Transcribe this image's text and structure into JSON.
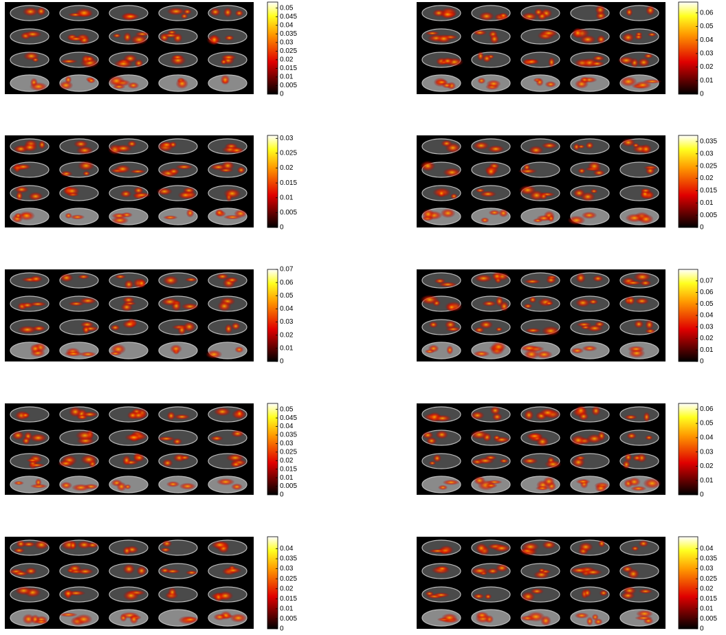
{
  "panels": [
    {
      "colorbar": {
        "lim": [
          0,
          0.0535
        ],
        "ticks": [
          0,
          0.005,
          0.01,
          0.015,
          0.02,
          0.025,
          0.03,
          0.035,
          0.04,
          0.045,
          0.05
        ]
      }
    },
    {
      "colorbar": {
        "lim": [
          0,
          0.068
        ],
        "ticks": [
          0,
          0.01,
          0.02,
          0.03,
          0.04,
          0.05,
          0.06
        ]
      }
    },
    {
      "colorbar": {
        "lim": [
          0,
          0.031
        ],
        "ticks": [
          0,
          0.005,
          0.01,
          0.015,
          0.02,
          0.025,
          0.03
        ]
      }
    },
    {
      "colorbar": {
        "lim": [
          0,
          0.0375
        ],
        "ticks": [
          0,
          0.005,
          0.01,
          0.015,
          0.02,
          0.025,
          0.03,
          0.035
        ]
      }
    },
    {
      "colorbar": {
        "lim": [
          0,
          0.07
        ],
        "ticks": [
          0,
          0.01,
          0.02,
          0.03,
          0.04,
          0.05,
          0.06,
          0.07
        ]
      }
    },
    {
      "colorbar": {
        "lim": [
          0,
          0.08
        ],
        "ticks": [
          0,
          0.01,
          0.02,
          0.03,
          0.04,
          0.05,
          0.06,
          0.07
        ]
      }
    },
    {
      "colorbar": {
        "lim": [
          0,
          0.0535
        ],
        "ticks": [
          0,
          0.005,
          0.01,
          0.015,
          0.02,
          0.025,
          0.03,
          0.035,
          0.04,
          0.045,
          0.05
        ]
      }
    },
    {
      "colorbar": {
        "lim": [
          0,
          0.064
        ],
        "ticks": [
          0,
          0.01,
          0.02,
          0.03,
          0.04,
          0.05,
          0.06
        ]
      }
    },
    {
      "colorbar": {
        "lim": [
          0,
          0.046
        ],
        "ticks": [
          0,
          0.005,
          0.01,
          0.015,
          0.02,
          0.025,
          0.03,
          0.035,
          0.04
        ]
      }
    },
    {
      "colorbar": {
        "lim": [
          0,
          0.046
        ],
        "ticks": [
          0,
          0.005,
          0.01,
          0.015,
          0.02,
          0.025,
          0.03,
          0.035,
          0.04
        ]
      }
    }
  ]
}
